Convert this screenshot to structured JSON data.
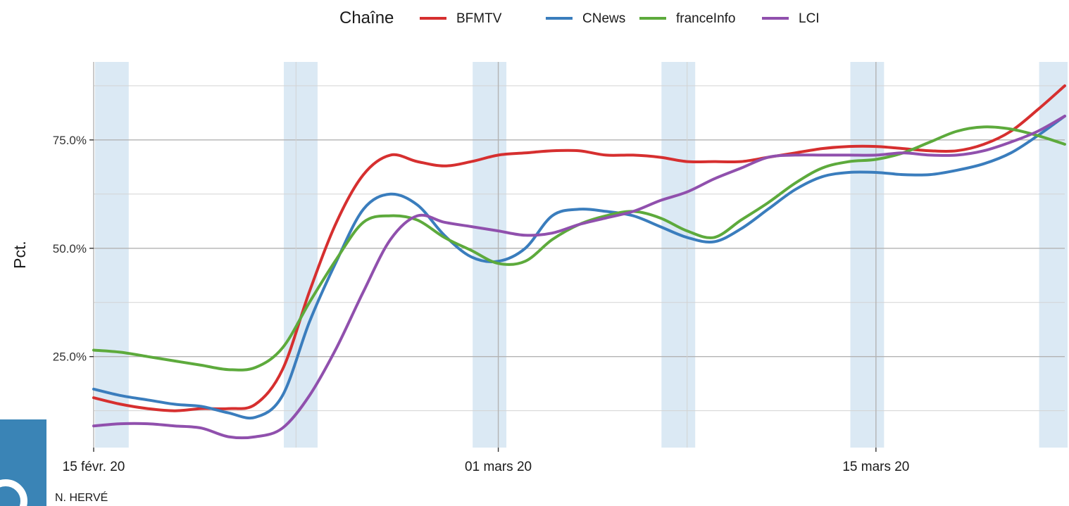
{
  "chart_data": {
    "type": "line",
    "ylabel": "Pct.",
    "y_format": "percent_1dp",
    "ylim": [
      0.04,
      0.93
    ],
    "xlim": [
      "2020-02-15",
      "2020-03-22"
    ],
    "y_ticks": [
      0.25,
      0.5,
      0.75
    ],
    "y_tick_labels": [
      "25.0%",
      "50.0%",
      "75.0%"
    ],
    "x_ticks": [
      "2020-02-15",
      "2020-03-01",
      "2020-03-15"
    ],
    "x_tick_labels": [
      "15 févr. 20",
      "01 mars 20",
      "15 mars 20"
    ],
    "grid": true,
    "legend": {
      "title": "Chaîne",
      "position": "top",
      "entries": [
        {
          "label": "BFMTV",
          "color": "#d62f2f"
        },
        {
          "label": "CNews",
          "color": "#3a7dbd"
        },
        {
          "label": "franceInfo",
          "color": "#5daa3c"
        },
        {
          "label": "LCI",
          "color": "#9050ad"
        }
      ]
    },
    "weekend_bands": [
      [
        "2020-02-15",
        "2020-02-17"
      ],
      [
        "2020-02-22",
        "2020-02-24"
      ],
      [
        "2020-02-29",
        "2020-03-02"
      ],
      [
        "2020-03-07",
        "2020-03-09"
      ],
      [
        "2020-03-14",
        "2020-03-16"
      ],
      [
        "2020-03-21",
        "2020-03-23"
      ]
    ],
    "x": [
      "2020-02-15",
      "2020-02-16",
      "2020-02-17",
      "2020-02-18",
      "2020-02-19",
      "2020-02-20",
      "2020-02-21",
      "2020-02-22",
      "2020-02-23",
      "2020-02-24",
      "2020-02-25",
      "2020-02-26",
      "2020-02-27",
      "2020-02-28",
      "2020-02-29",
      "2020-03-01",
      "2020-03-02",
      "2020-03-03",
      "2020-03-04",
      "2020-03-05",
      "2020-03-06",
      "2020-03-07",
      "2020-03-08",
      "2020-03-09",
      "2020-03-10",
      "2020-03-11",
      "2020-03-12",
      "2020-03-13",
      "2020-03-14",
      "2020-03-15",
      "2020-03-16",
      "2020-03-17",
      "2020-03-18",
      "2020-03-19",
      "2020-03-20",
      "2020-03-21",
      "2020-03-22"
    ],
    "series": [
      {
        "name": "BFMTV",
        "color": "#d62f2f",
        "values": [
          0.155,
          0.14,
          0.13,
          0.125,
          0.13,
          0.13,
          0.14,
          0.22,
          0.4,
          0.56,
          0.67,
          0.715,
          0.7,
          0.69,
          0.7,
          0.715,
          0.72,
          0.725,
          0.725,
          0.715,
          0.715,
          0.71,
          0.7,
          0.7,
          0.7,
          0.71,
          0.72,
          0.73,
          0.735,
          0.735,
          0.73,
          0.725,
          0.725,
          0.74,
          0.77,
          0.82,
          0.875
        ]
      },
      {
        "name": "CNews",
        "color": "#3a7dbd",
        "values": [
          0.175,
          0.16,
          0.15,
          0.14,
          0.135,
          0.12,
          0.11,
          0.16,
          0.33,
          0.47,
          0.59,
          0.625,
          0.6,
          0.53,
          0.48,
          0.47,
          0.5,
          0.575,
          0.59,
          0.585,
          0.575,
          0.55,
          0.525,
          0.515,
          0.545,
          0.59,
          0.635,
          0.665,
          0.675,
          0.675,
          0.67,
          0.67,
          0.68,
          0.695,
          0.72,
          0.76,
          0.805
        ]
      },
      {
        "name": "franceInfo",
        "color": "#5daa3c",
        "values": [
          0.265,
          0.26,
          0.25,
          0.24,
          0.23,
          0.22,
          0.225,
          0.27,
          0.375,
          0.475,
          0.56,
          0.575,
          0.565,
          0.525,
          0.495,
          0.465,
          0.47,
          0.52,
          0.555,
          0.575,
          0.585,
          0.57,
          0.54,
          0.525,
          0.565,
          0.605,
          0.65,
          0.685,
          0.7,
          0.705,
          0.72,
          0.745,
          0.77,
          0.78,
          0.775,
          0.76,
          0.74
        ]
      },
      {
        "name": "LCI",
        "color": "#9050ad",
        "values": [
          0.09,
          0.095,
          0.095,
          0.09,
          0.085,
          0.065,
          0.065,
          0.085,
          0.16,
          0.27,
          0.4,
          0.52,
          0.575,
          0.56,
          0.55,
          0.54,
          0.53,
          0.535,
          0.555,
          0.57,
          0.585,
          0.61,
          0.63,
          0.66,
          0.685,
          0.71,
          0.715,
          0.715,
          0.715,
          0.715,
          0.72,
          0.715,
          0.715,
          0.725,
          0.745,
          0.77,
          0.805
        ]
      }
    ],
    "credit": "N. HERVÉ"
  },
  "branding": {
    "logo_icon": "ina-logo-icon",
    "logo_color": "#3a84b6"
  }
}
